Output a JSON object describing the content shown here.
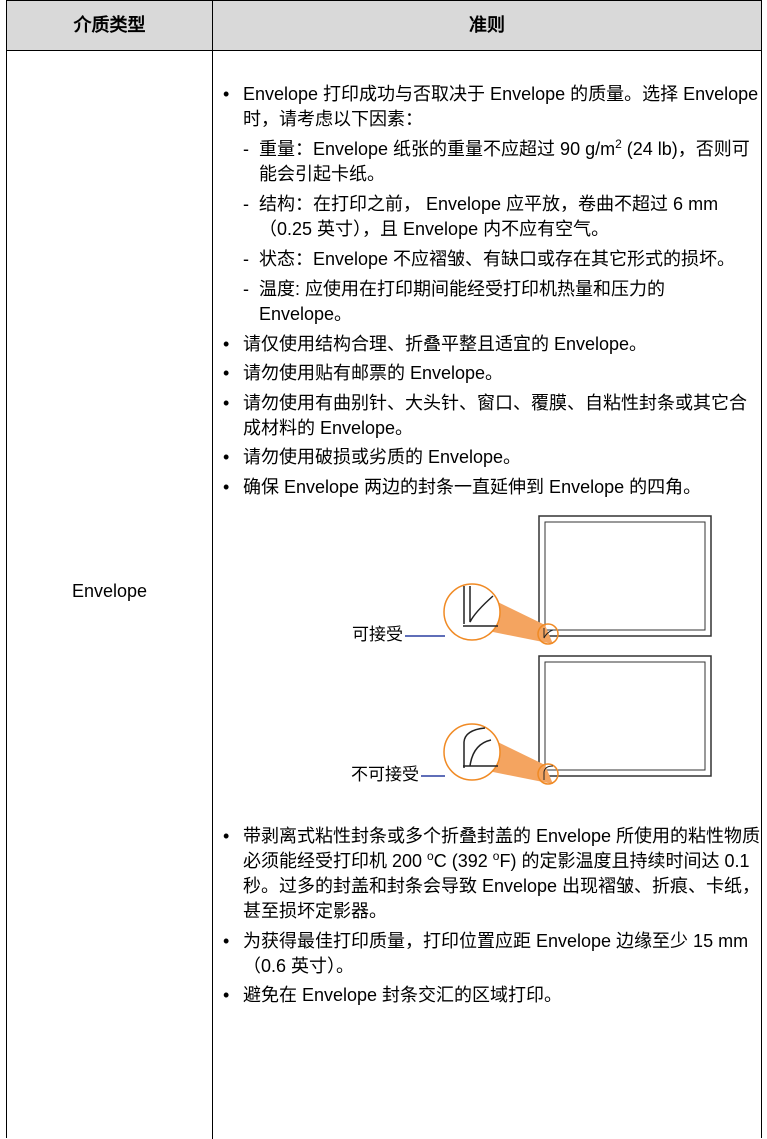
{
  "table": {
    "header": [
      "介质类型",
      "准则"
    ],
    "media": "Envelope",
    "items_before": [
      {
        "parts": [
          "Envelope 打印成功与否取决于 Envelope 的质量。选择 Envelope 时，请考虑以下因素："
        ],
        "sub": [
          {
            "parts": [
              "重量：Envelope 纸张的重量不应超过 90 g/m",
              "2",
              " (24 lb)，否则可能会引起卡纸。"
            ]
          },
          {
            "parts": [
              "结构：在打印之前， Envelope 应平放，卷曲不超过 6 mm（0.25 英寸），且 Envelope 内不应有空气。"
            ]
          },
          {
            "parts": [
              "状态：Envelope 不应褶皱、有缺口或存在其它形式的损坏。"
            ]
          },
          {
            "parts": [
              "温度: 应使用在打印期间能经受打印机热量和压力的 Envelope。"
            ]
          }
        ]
      },
      {
        "parts": [
          "请仅使用结构合理、折叠平整且适宜的 Envelope。"
        ]
      },
      {
        "parts": [
          "请勿使用贴有邮票的 Envelope。"
        ]
      },
      {
        "parts": [
          "请勿使用有曲别针、大头针、窗口、覆膜、自粘性封条或其它合成材料的 Envelope。"
        ]
      },
      {
        "parts": [
          "请勿使用破损或劣质的 Envelope。"
        ]
      },
      {
        "parts": [
          "确保 Envelope 两边的封条一直延伸到 Envelope 的四角。"
        ]
      }
    ],
    "figure": {
      "acceptable": "可接受",
      "unacceptable": "不可接受"
    },
    "items_after": [
      {
        "parts": [
          "带剥离式粘性封条或多个折叠封盖的 Envelope 所使用的粘性物质必须能经受打印机 200 ",
          "o",
          "C (392 ",
          "o",
          "F) 的定影温度且持续时间达 0.1 秒。过多的封盖和封条会导致 Envelope 出现褶皱、折痕、卡纸，甚至损坏定影器。"
        ]
      },
      {
        "parts": [
          "为获得最佳打印质量，打印位置应距 Envelope 边缘至少 15 mm （0.6 英寸）。"
        ]
      },
      {
        "parts": [
          "避免在 Envelope 封条交汇的区域打印。"
        ]
      }
    ]
  }
}
